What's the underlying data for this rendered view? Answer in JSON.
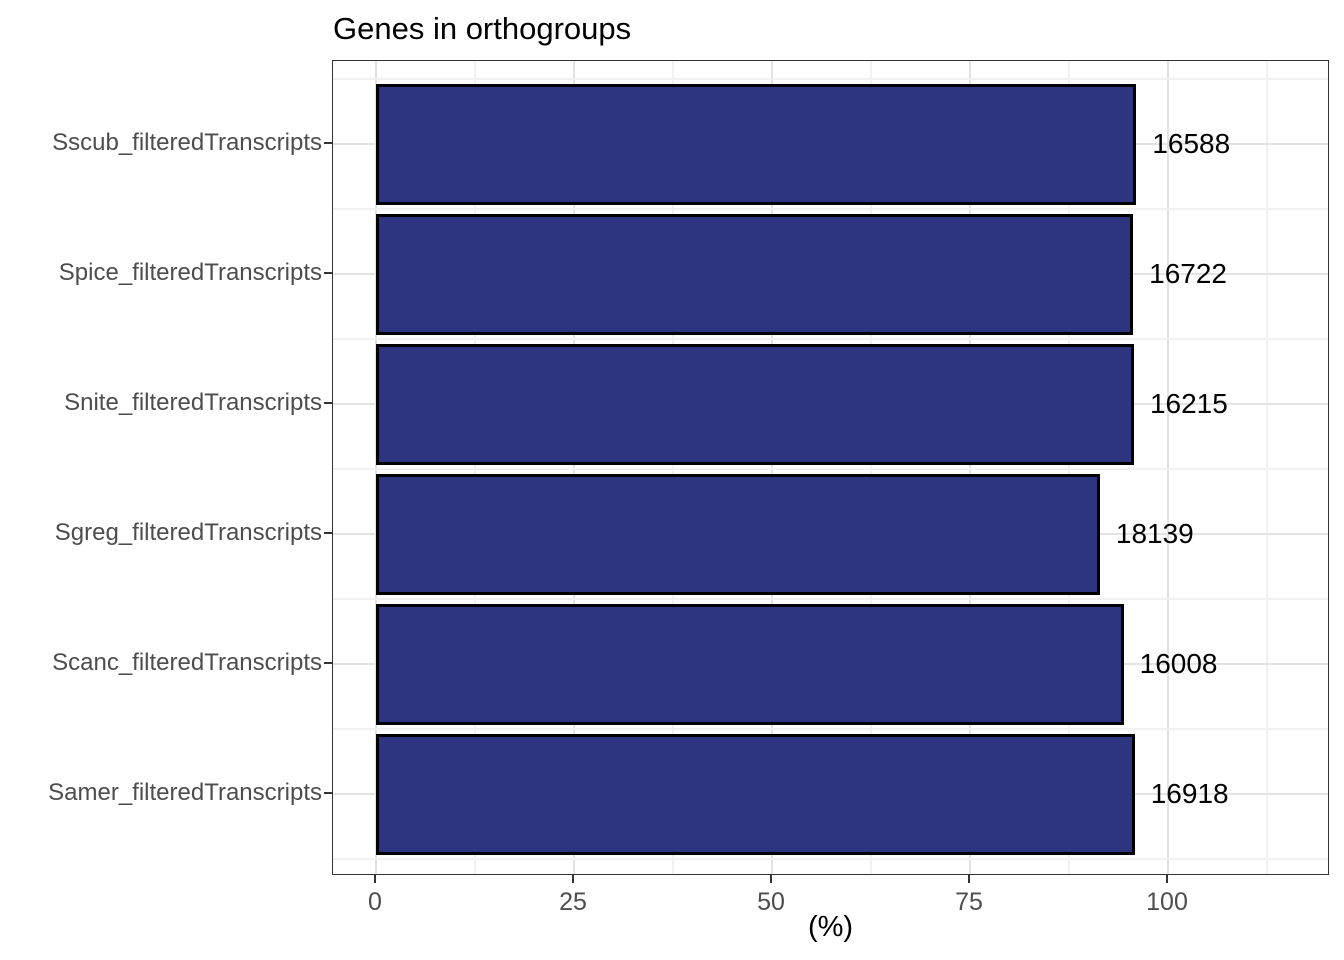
{
  "figure": {
    "title": "Genes in orthogroups",
    "xlabel": "(%)"
  },
  "chart_data": {
    "type": "bar",
    "orientation": "horizontal",
    "title": "Genes in orthogroups",
    "xlabel": "(%)",
    "ylabel": "",
    "categories": [
      "Sscub_filteredTranscripts",
      "Spice_filteredTranscripts",
      "Snite_filteredTranscripts",
      "Sgreg_filteredTranscripts",
      "Scanc_filteredTranscripts",
      "Samer_filteredTranscripts"
    ],
    "values_percent": [
      96.0,
      95.6,
      95.7,
      91.4,
      94.4,
      95.8
    ],
    "bar_labels": [
      "16588",
      "16722",
      "16215",
      "18139",
      "16008",
      "16918"
    ],
    "x_ticks": [
      0,
      25,
      50,
      75,
      100
    ],
    "x_minor_ticks": [
      12.5,
      37.5,
      62.5,
      87.5,
      112.5
    ],
    "xlim": [
      -5.4,
      120.6
    ],
    "grid": true,
    "legend": false,
    "colors": {
      "bar_fill": "#2D3480",
      "bar_border": "#000000",
      "grid_major": "#E3E3E3",
      "grid_minor": "#F1F1F1",
      "panel_border": "#333333",
      "axis_text": "#4D4D4D",
      "value_label_text": "#000000"
    }
  }
}
